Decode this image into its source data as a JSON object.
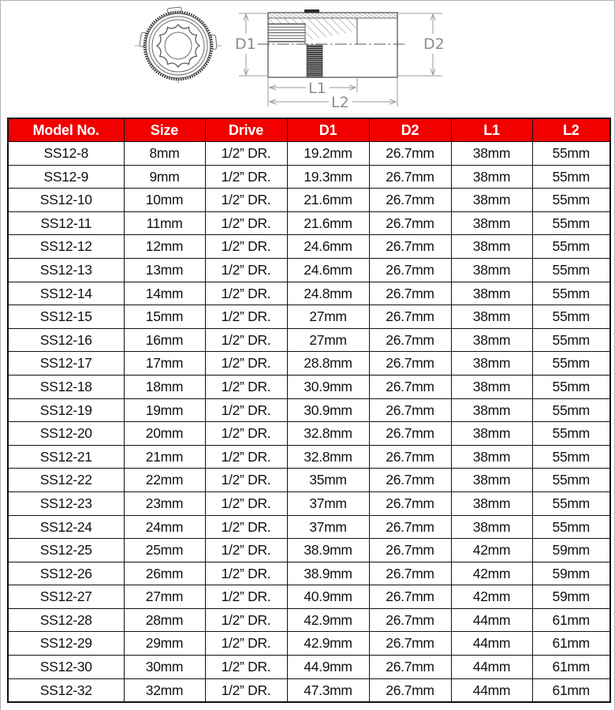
{
  "page": {
    "background": "#ffffff",
    "frame_color": "#b3b3b3"
  },
  "diagram": {
    "description": "12-point socket technical drawing: front view and side cross-section",
    "labels": {
      "d1": "D1",
      "d2": "D2",
      "l1": "L1",
      "l2": "L2"
    },
    "outline_color": "#555555",
    "dimension_color": "#999999"
  },
  "table": {
    "header_bg": "#f20000",
    "header_text_color": "#ffffff",
    "border_color": "#111111",
    "columns": [
      "Model No.",
      "Size",
      "Drive",
      "D1",
      "D2",
      "L1",
      "L2"
    ],
    "column_keys": [
      "model",
      "size",
      "drive",
      "d1",
      "d2",
      "l1",
      "l2"
    ],
    "rows": [
      [
        "SS12-8",
        "8mm",
        "1/2” DR.",
        "19.2mm",
        "26.7mm",
        "38mm",
        "55mm"
      ],
      [
        "SS12-9",
        "9mm",
        "1/2” DR.",
        "19.3mm",
        "26.7mm",
        "38mm",
        "55mm"
      ],
      [
        "SS12-10",
        "10mm",
        "1/2” DR.",
        "21.6mm",
        "26.7mm",
        "38mm",
        "55mm"
      ],
      [
        "SS12-11",
        "11mm",
        "1/2” DR.",
        "21.6mm",
        "26.7mm",
        "38mm",
        "55mm"
      ],
      [
        "SS12-12",
        "12mm",
        "1/2” DR.",
        "24.6mm",
        "26.7mm",
        "38mm",
        "55mm"
      ],
      [
        "SS12-13",
        "13mm",
        "1/2” DR.",
        "24.6mm",
        "26.7mm",
        "38mm",
        "55mm"
      ],
      [
        "SS12-14",
        "14mm",
        "1/2” DR.",
        "24.8mm",
        "26.7mm",
        "38mm",
        "55mm"
      ],
      [
        "SS12-15",
        "15mm",
        "1/2” DR.",
        "27mm",
        "26.7mm",
        "38mm",
        "55mm"
      ],
      [
        "SS12-16",
        "16mm",
        "1/2” DR.",
        "27mm",
        "26.7mm",
        "38mm",
        "55mm"
      ],
      [
        "SS12-17",
        "17mm",
        "1/2” DR.",
        "28.8mm",
        "26.7mm",
        "38mm",
        "55mm"
      ],
      [
        "SS12-18",
        "18mm",
        "1/2” DR.",
        "30.9mm",
        "26.7mm",
        "38mm",
        "55mm"
      ],
      [
        "SS12-19",
        "19mm",
        "1/2” DR.",
        "30.9mm",
        "26.7mm",
        "38mm",
        "55mm"
      ],
      [
        "SS12-20",
        "20mm",
        "1/2” DR.",
        "32.8mm",
        "26.7mm",
        "38mm",
        "55mm"
      ],
      [
        "SS12-21",
        "21mm",
        "1/2” DR.",
        "32.8mm",
        "26.7mm",
        "38mm",
        "55mm"
      ],
      [
        "SS12-22",
        "22mm",
        "1/2” DR.",
        "35mm",
        "26.7mm",
        "38mm",
        "55mm"
      ],
      [
        "SS12-23",
        "23mm",
        "1/2” DR.",
        "37mm",
        "26.7mm",
        "38mm",
        "55mm"
      ],
      [
        "SS12-24",
        "24mm",
        "1/2” DR.",
        "37mm",
        "26.7mm",
        "38mm",
        "55mm"
      ],
      [
        "SS12-25",
        "25mm",
        "1/2” DR.",
        "38.9mm",
        "26.7mm",
        "42mm",
        "59mm"
      ],
      [
        "SS12-26",
        "26mm",
        "1/2” DR.",
        "38.9mm",
        "26.7mm",
        "42mm",
        "59mm"
      ],
      [
        "SS12-27",
        "27mm",
        "1/2” DR.",
        "40.9mm",
        "26.7mm",
        "42mm",
        "59mm"
      ],
      [
        "SS12-28",
        "28mm",
        "1/2” DR.",
        "42.9mm",
        "26.7mm",
        "44mm",
        "61mm"
      ],
      [
        "SS12-29",
        "29mm",
        "1/2” DR.",
        "42.9mm",
        "26.7mm",
        "44mm",
        "61mm"
      ],
      [
        "SS12-30",
        "30mm",
        "1/2” DR.",
        "44.9mm",
        "26.7mm",
        "44mm",
        "61mm"
      ],
      [
        "SS12-32",
        "32mm",
        "1/2” DR.",
        "47.3mm",
        "26.7mm",
        "44mm",
        "61mm"
      ]
    ]
  }
}
